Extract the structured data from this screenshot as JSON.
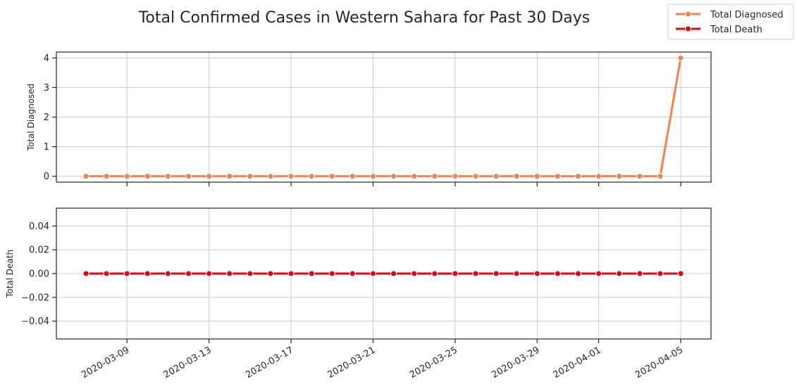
{
  "chart_data": {
    "type": "line",
    "title": "Total Confirmed Cases in Western Sahara for Past 30 Days",
    "legend": {
      "placement": "top-right",
      "entries": [
        {
          "label": "Total Diagnosed",
          "color": "#f4814f"
        },
        {
          "label": "Total Death",
          "color": "#e8000b"
        }
      ]
    },
    "x": [
      "2020-03-07",
      "2020-03-08",
      "2020-03-09",
      "2020-03-10",
      "2020-03-11",
      "2020-03-12",
      "2020-03-13",
      "2020-03-14",
      "2020-03-15",
      "2020-03-16",
      "2020-03-17",
      "2020-03-18",
      "2020-03-19",
      "2020-03-20",
      "2020-03-21",
      "2020-03-22",
      "2020-03-23",
      "2020-03-24",
      "2020-03-25",
      "2020-03-26",
      "2020-03-27",
      "2020-03-28",
      "2020-03-29",
      "2020-03-30",
      "2020-03-31",
      "2020-04-01",
      "2020-04-02",
      "2020-04-03",
      "2020-04-04",
      "2020-04-05"
    ],
    "xticks": [
      "2020-03-09",
      "2020-03-13",
      "2020-03-17",
      "2020-03-21",
      "2020-03-25",
      "2020-03-29",
      "2020-04-01",
      "2020-04-05"
    ],
    "panels": [
      {
        "ylabel": "Total Diagnosed",
        "ylim": [
          -0.2,
          4.2
        ],
        "yticks": [
          0,
          1,
          2,
          3,
          4
        ],
        "ytick_labels": [
          "0",
          "1",
          "2",
          "3",
          "4"
        ],
        "grid": true,
        "series": [
          {
            "name": "Total Diagnosed",
            "color": "#f4814f",
            "values": [
              0,
              0,
              0,
              0,
              0,
              0,
              0,
              0,
              0,
              0,
              0,
              0,
              0,
              0,
              0,
              0,
              0,
              0,
              0,
              0,
              0,
              0,
              0,
              0,
              0,
              0,
              0,
              0,
              0,
              4
            ]
          }
        ]
      },
      {
        "ylabel": "Total Death",
        "ylim": [
          -0.055,
          0.055
        ],
        "yticks": [
          -0.04,
          -0.02,
          0.0,
          0.02,
          0.04
        ],
        "ytick_labels": [
          "−0.04",
          "−0.02",
          "0.00",
          "0.02",
          "0.04"
        ],
        "grid": true,
        "series": [
          {
            "name": "Total Death",
            "color": "#e8000b",
            "values": [
              0,
              0,
              0,
              0,
              0,
              0,
              0,
              0,
              0,
              0,
              0,
              0,
              0,
              0,
              0,
              0,
              0,
              0,
              0,
              0,
              0,
              0,
              0,
              0,
              0,
              0,
              0,
              0,
              0,
              0
            ]
          }
        ]
      }
    ]
  }
}
